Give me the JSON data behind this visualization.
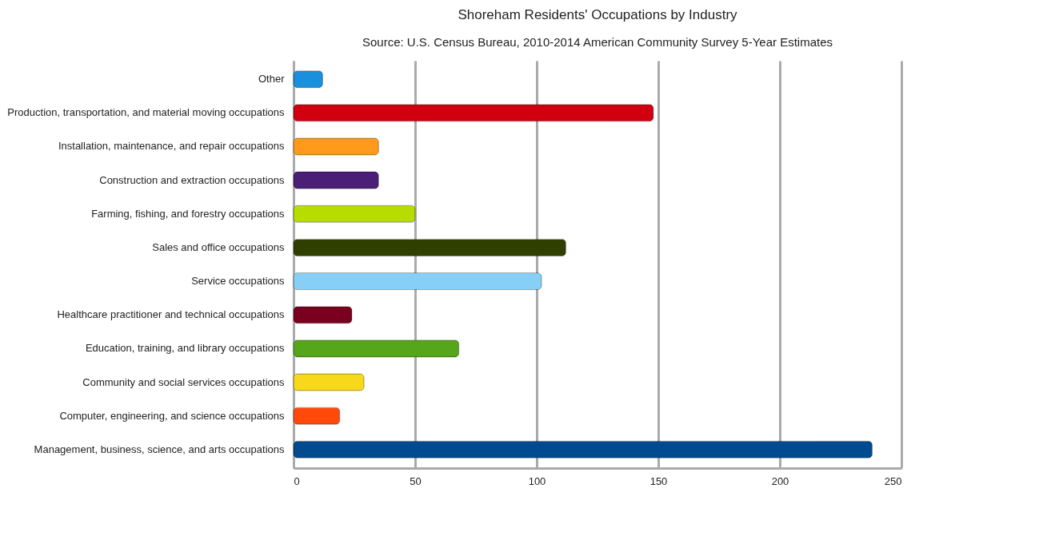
{
  "chart_data": {
    "type": "bar",
    "orientation": "horizontal",
    "title": "Shoreham Residents' Occupations by Industry",
    "subtitle": "Source: U.S. Census Bureau, 2010-2014 American Community Survey 5-Year Estimates",
    "categories": [
      "Other",
      "Production, transportation, and material moving occupations",
      "Installation, maintenance, and repair occupations",
      "Construction and extraction occupations",
      "Farming, fishing, and forestry occupations",
      "Sales and office occupations",
      "Service occupations",
      "Healthcare practitioner and technical occupations",
      "Education, training, and library occupations",
      "Community and social services occupations",
      "Computer, engineering, and science occupations",
      "Management, business, science, and arts occupations"
    ],
    "values": [
      12,
      148,
      35,
      35,
      50,
      112,
      102,
      24,
      68,
      29,
      19,
      238
    ],
    "colors": [
      "#1a8fdc",
      "#d0000e",
      "#ff9a1a",
      "#4b1f78",
      "#b7dc00",
      "#2f3f00",
      "#87cff7",
      "#7a0020",
      "#56a61c",
      "#f7d81a",
      "#ff4a0a",
      "#004a8f"
    ],
    "xlim": [
      0,
      250
    ],
    "xticks": [
      0,
      50,
      100,
      150,
      200,
      250
    ],
    "grid": "x"
  }
}
